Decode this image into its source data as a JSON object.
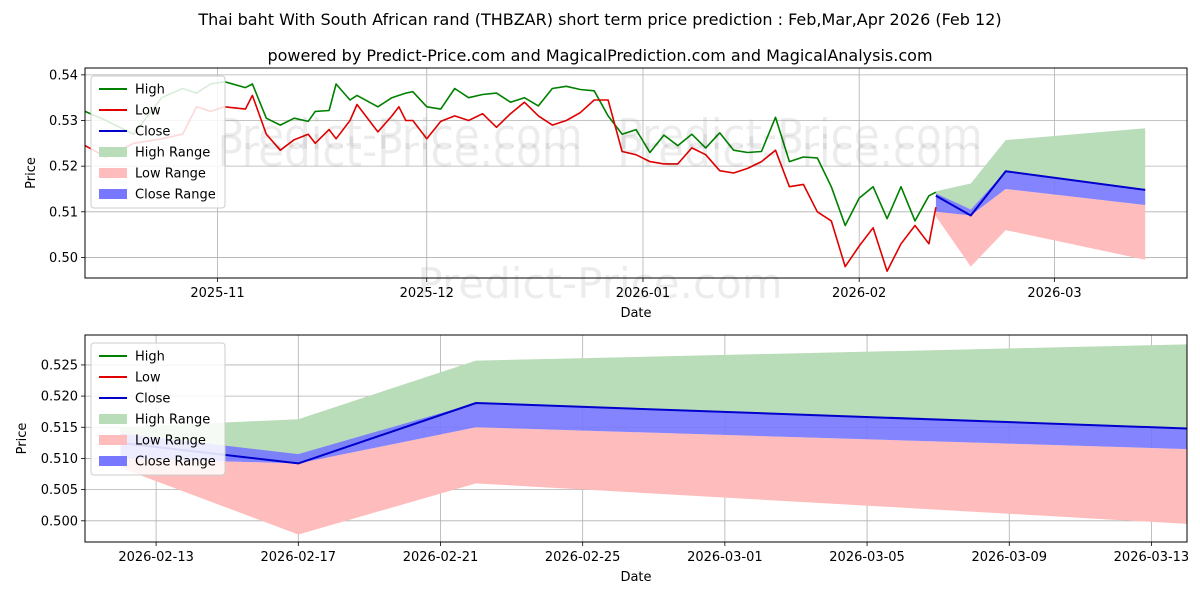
{
  "title": "Thai baht With South African rand (THBZAR) short term price prediction : Feb,Mar,Apr 2026 (Feb 12)",
  "subtitle": "powered by Predict-Price.com and MagicalPrediction.com and MagicalAnalysis.com",
  "watermark": "Predict-Price.com",
  "colors": {
    "high": "#008000",
    "low": "#e00000",
    "close": "#0000cc",
    "high_range": "#b9dcb9",
    "low_range": "#ffbcbc",
    "close_range": "#7777ff",
    "grid": "#b0b0b0"
  },
  "legend": {
    "high": "High",
    "low": "Low",
    "close": "Close",
    "high_range": "High Range",
    "low_range": "Low Range",
    "close_range": "Close Range"
  },
  "chart_data": [
    {
      "type": "line",
      "panel": "top",
      "xlabel": "Date",
      "ylabel": "Price",
      "xlim": [
        "2025-10-13",
        "2026-03-20"
      ],
      "ylim": [
        0.4955,
        0.5415
      ],
      "xticks": [
        "2025-11",
        "2025-12",
        "2026-01",
        "2026-02",
        "2026-03"
      ],
      "yticks": [
        "0.50",
        "0.51",
        "0.52",
        "0.53",
        "0.54"
      ],
      "legend_position": "top-left",
      "series": [
        {
          "name": "High",
          "dates": [
            "2025-10-13",
            "2025-10-16",
            "2025-10-20",
            "2025-10-24",
            "2025-10-27",
            "2025-10-29",
            "2025-10-31",
            "2025-11-02",
            "2025-11-05",
            "2025-11-06",
            "2025-11-08",
            "2025-11-10",
            "2025-11-12",
            "2025-11-14",
            "2025-11-15",
            "2025-11-17",
            "2025-11-18",
            "2025-11-20",
            "2025-11-21",
            "2025-11-24",
            "2025-11-26",
            "2025-11-27",
            "2025-11-28",
            "2025-11-29",
            "2025-12-01",
            "2025-12-03",
            "2025-12-05",
            "2025-12-07",
            "2025-12-09",
            "2025-12-11",
            "2025-12-13",
            "2025-12-15",
            "2025-12-17",
            "2025-12-19",
            "2025-12-21",
            "2025-12-23",
            "2025-12-25",
            "2025-12-27",
            "2025-12-29",
            "2025-12-31",
            "2026-01-02",
            "2026-01-04",
            "2026-01-06",
            "2026-01-08",
            "2026-01-10",
            "2026-01-12",
            "2026-01-14",
            "2026-01-16",
            "2026-01-18",
            "2026-01-20",
            "2026-01-22",
            "2026-01-24",
            "2026-01-26",
            "2026-01-28",
            "2026-01-30",
            "2026-02-01",
            "2026-02-03",
            "2026-02-05",
            "2026-02-07",
            "2026-02-09",
            "2026-02-11",
            "2026-02-12"
          ],
          "values": [
            0.532,
            0.53,
            0.527,
            0.535,
            0.537,
            0.536,
            0.538,
            0.5385,
            0.5372,
            0.538,
            0.5305,
            0.529,
            0.5305,
            0.5298,
            0.532,
            0.5322,
            0.538,
            0.5345,
            0.5355,
            0.533,
            0.535,
            0.5355,
            0.536,
            0.5363,
            0.533,
            0.5325,
            0.537,
            0.535,
            0.5357,
            0.536,
            0.534,
            0.535,
            0.5332,
            0.537,
            0.5375,
            0.5368,
            0.5365,
            0.531,
            0.527,
            0.528,
            0.523,
            0.5268,
            0.5245,
            0.527,
            0.524,
            0.5273,
            0.5235,
            0.523,
            0.5232,
            0.5307,
            0.521,
            0.522,
            0.5218,
            0.5155,
            0.507,
            0.513,
            0.5155,
            0.5085,
            0.5155,
            0.508,
            0.5135,
            0.5143
          ]
        },
        {
          "name": "Low",
          "dates": [
            "2025-10-13",
            "2025-10-16",
            "2025-10-20",
            "2025-10-24",
            "2025-10-27",
            "2025-10-29",
            "2025-10-31",
            "2025-11-02",
            "2025-11-05",
            "2025-11-06",
            "2025-11-08",
            "2025-11-10",
            "2025-11-12",
            "2025-11-14",
            "2025-11-15",
            "2025-11-17",
            "2025-11-18",
            "2025-11-20",
            "2025-11-21",
            "2025-11-24",
            "2025-11-26",
            "2025-11-27",
            "2025-11-28",
            "2025-11-29",
            "2025-12-01",
            "2025-12-03",
            "2025-12-05",
            "2025-12-07",
            "2025-12-09",
            "2025-12-11",
            "2025-12-13",
            "2025-12-15",
            "2025-12-17",
            "2025-12-19",
            "2025-12-21",
            "2025-12-23",
            "2025-12-25",
            "2025-12-27",
            "2025-12-29",
            "2025-12-31",
            "2026-01-02",
            "2026-01-04",
            "2026-01-06",
            "2026-01-08",
            "2026-01-10",
            "2026-01-12",
            "2026-01-14",
            "2026-01-16",
            "2026-01-18",
            "2026-01-20",
            "2026-01-22",
            "2026-01-24",
            "2026-01-26",
            "2026-01-28",
            "2026-01-30",
            "2026-02-01",
            "2026-02-03",
            "2026-02-05",
            "2026-02-07",
            "2026-02-09",
            "2026-02-11",
            "2026-02-12"
          ],
          "values": [
            0.5245,
            0.522,
            0.525,
            0.526,
            0.527,
            0.533,
            0.532,
            0.533,
            0.5325,
            0.5355,
            0.527,
            0.5235,
            0.5258,
            0.527,
            0.525,
            0.528,
            0.526,
            0.53,
            0.5335,
            0.5275,
            0.531,
            0.533,
            0.53,
            0.53,
            0.526,
            0.5298,
            0.531,
            0.53,
            0.5315,
            0.5285,
            0.5315,
            0.534,
            0.531,
            0.529,
            0.53,
            0.5317,
            0.5345,
            0.5345,
            0.5232,
            0.5225,
            0.521,
            0.5205,
            0.5205,
            0.524,
            0.5225,
            0.519,
            0.5185,
            0.5195,
            0.521,
            0.5235,
            0.5155,
            0.516,
            0.51,
            0.508,
            0.498,
            0.5025,
            0.5065,
            0.497,
            0.503,
            0.507,
            0.503,
            0.511
          ]
        },
        {
          "name": "Close",
          "dates": [
            "2026-02-12",
            "2026-02-17",
            "2026-02-22",
            "2026-03-14"
          ],
          "values": [
            0.5135,
            0.5092,
            0.5189,
            0.5148
          ]
        }
      ],
      "ranges": [
        {
          "name": "High Range",
          "dates": [
            "2026-02-12",
            "2026-02-17",
            "2026-02-22",
            "2026-03-14"
          ],
          "upper": [
            0.5145,
            0.5162,
            0.5257,
            0.5283
          ],
          "lower": [
            0.5135,
            0.5105,
            0.5189,
            0.5148
          ]
        },
        {
          "name": "Low Range",
          "dates": [
            "2026-02-12",
            "2026-02-17",
            "2026-02-22",
            "2026-03-14"
          ],
          "upper": [
            0.51,
            0.5092,
            0.515,
            0.5115
          ],
          "lower": [
            0.509,
            0.498,
            0.506,
            0.4995
          ]
        },
        {
          "name": "Close Range",
          "dates": [
            "2026-02-12",
            "2026-02-17",
            "2026-02-22",
            "2026-03-14"
          ],
          "upper": [
            0.514,
            0.5105,
            0.5189,
            0.5148
          ],
          "lower": [
            0.51,
            0.5092,
            0.515,
            0.5115
          ]
        }
      ]
    },
    {
      "type": "line",
      "panel": "bottom",
      "xlabel": "Date",
      "ylabel": "Price",
      "xlim": [
        "2026-02-11",
        "2026-03-14"
      ],
      "ylim": [
        0.4966,
        0.5298
      ],
      "xticks": [
        "2026-02-13",
        "2026-02-17",
        "2026-02-21",
        "2026-02-25",
        "2026-03-01",
        "2026-03-05",
        "2026-03-09",
        "2026-03-13"
      ],
      "yticks": [
        "0.500",
        "0.505",
        "0.510",
        "0.515",
        "0.520",
        "0.525"
      ],
      "legend_position": "top-left",
      "series": [
        {
          "name": "Close",
          "dates": [
            "2026-02-12",
            "2026-02-17",
            "2026-02-22",
            "2026-03-14"
          ],
          "values": [
            0.5125,
            0.5092,
            0.5189,
            0.5148
          ]
        }
      ],
      "ranges": [
        {
          "name": "High Range",
          "dates": [
            "2026-02-12",
            "2026-02-17",
            "2026-02-22",
            "2026-03-14"
          ],
          "upper": [
            0.515,
            0.5163,
            0.5257,
            0.5283
          ],
          "lower": [
            0.5125,
            0.5092,
            0.5189,
            0.5148
          ]
        },
        {
          "name": "Low Range",
          "dates": [
            "2026-02-12",
            "2026-02-17",
            "2026-02-22",
            "2026-03-14"
          ],
          "upper": [
            0.51,
            0.5092,
            0.515,
            0.5115
          ],
          "lower": [
            0.5085,
            0.4978,
            0.506,
            0.4995
          ]
        },
        {
          "name": "Close Range",
          "dates": [
            "2026-02-12",
            "2026-02-17",
            "2026-02-22",
            "2026-03-14"
          ],
          "upper": [
            0.514,
            0.5107,
            0.5189,
            0.5148
          ],
          "lower": [
            0.51,
            0.5092,
            0.515,
            0.5115
          ]
        }
      ]
    }
  ]
}
